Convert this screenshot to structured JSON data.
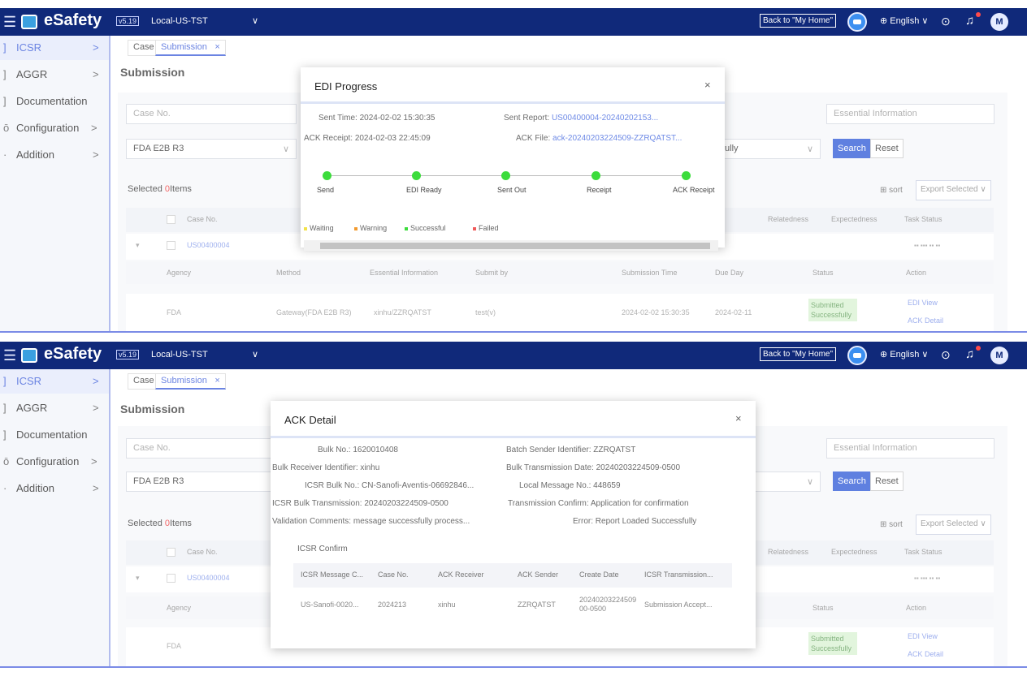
{
  "topbar": {
    "brand": "eSafety",
    "version": "v5.19",
    "environment": "Local-US-TST",
    "back_home": "Back to \"My Home\"",
    "language": "⊕ English ∨",
    "avatar_initial": "M",
    "colors": {
      "bar": "#10297a",
      "accent": "#2a56d6"
    }
  },
  "sidebar": {
    "items": [
      {
        "label": "ICSR",
        "lead": "]",
        "chev": ">"
      },
      {
        "label": "AGGR",
        "lead": "]",
        "chev": ">"
      },
      {
        "label": "Documentation",
        "lead": "]",
        "chev": ""
      },
      {
        "label": "Configuration",
        "lead": "ō",
        "chev": ">"
      },
      {
        "label": "Addition",
        "lead": "·",
        "chev": ">"
      }
    ]
  },
  "tabs": {
    "case": "Case",
    "submission": "Submission",
    "close": "×"
  },
  "page": {
    "title": "Submission",
    "case_no_placeholder": "Case No.",
    "essential_info_placeholder": "Essential Information",
    "format_value": "FDA E2B R3",
    "status_value": "fully",
    "search": "Search",
    "reset": "Reset",
    "selected_prefix": "Selected ",
    "selected_count": "0",
    "selected_suffix": "Items",
    "sort": "⊞ sort",
    "export": "Export Selected ∨"
  },
  "grid": {
    "headers": [
      "Case No.",
      "Relatedness",
      "Expectedness",
      "Task Status"
    ],
    "case_no": "US00400004",
    "sub_headers": [
      "Agency",
      "Method",
      "Essential Information",
      "Submit by",
      "Submission Time",
      "Due Day",
      "Status",
      "Action"
    ],
    "row": {
      "agency": "FDA",
      "method": "Gateway(FDA E2B R3)",
      "essential": "xinhu/ZZRQATST",
      "submit_by": "test(v)",
      "submission_time": "2024-02-02 15:30:35",
      "due_day": "2024-02-11",
      "status": "Submitted Successfully",
      "actions": [
        "EDI View",
        "ACK Detail"
      ]
    }
  },
  "edi_modal": {
    "title": "EDI Progress",
    "close": "×",
    "sent_time_label": "Sent Time:",
    "sent_time_value": "2024-02-02 15:30:35",
    "sent_report_label": "Sent Report:",
    "sent_report_value": "US00400004-20240202153...",
    "ack_receipt_label": "ACK Receipt:",
    "ack_receipt_value": "2024-02-03 22:45:09",
    "ack_file_label": "ACK File:",
    "ack_file_value": "ack-20240203224509-ZZRQATST...",
    "steps": [
      "Send",
      "EDI Ready",
      "Sent Out",
      "Receipt",
      "ACK Receipt"
    ],
    "legend": [
      {
        "label": "Waiting",
        "color": "#f2e24a"
      },
      {
        "label": "Warning",
        "color": "#f29a2e"
      },
      {
        "label": "Successful",
        "color": "#3cdc3c"
      },
      {
        "label": "Failed",
        "color": "#f05a5a"
      }
    ]
  },
  "ack_modal": {
    "title": "ACK Detail",
    "close": "×",
    "fields": [
      {
        "label": "Bulk No.:",
        "value": "1620010408"
      },
      {
        "label": "Batch Sender Identifier:",
        "value": "ZZRQATST"
      },
      {
        "label": "Bulk Receiver Identifier:",
        "value": "xinhu"
      },
      {
        "label": "Bulk Transmission Date:",
        "value": "20240203224509-0500"
      },
      {
        "label": "ICSR Bulk No.:",
        "value": "CN-Sanofi-Aventis-06692846..."
      },
      {
        "label": "Local Message No.:",
        "value": "448659"
      },
      {
        "label": "ICSR Bulk Transmission:",
        "value": "20240203224509-0500"
      },
      {
        "label": "Transmission Confirm:",
        "value": "Application for confirmation"
      },
      {
        "label": "Validation Comments:",
        "value": "message successfully process..."
      },
      {
        "label": "Error:",
        "value": "Report Loaded Successfully"
      }
    ],
    "icsr_title": "ICSR Confirm",
    "table_headers": [
      "ICSR Message C...",
      "Case No.",
      "ACK Receiver",
      "ACK Sender",
      "Create Date",
      "ICSR Transmission..."
    ],
    "table_row": [
      "US-Sanofi-0020...",
      "2024213",
      "xinhu",
      "ZZRQATST",
      "20240203224509 00-0500",
      "Submission Accept..."
    ]
  }
}
